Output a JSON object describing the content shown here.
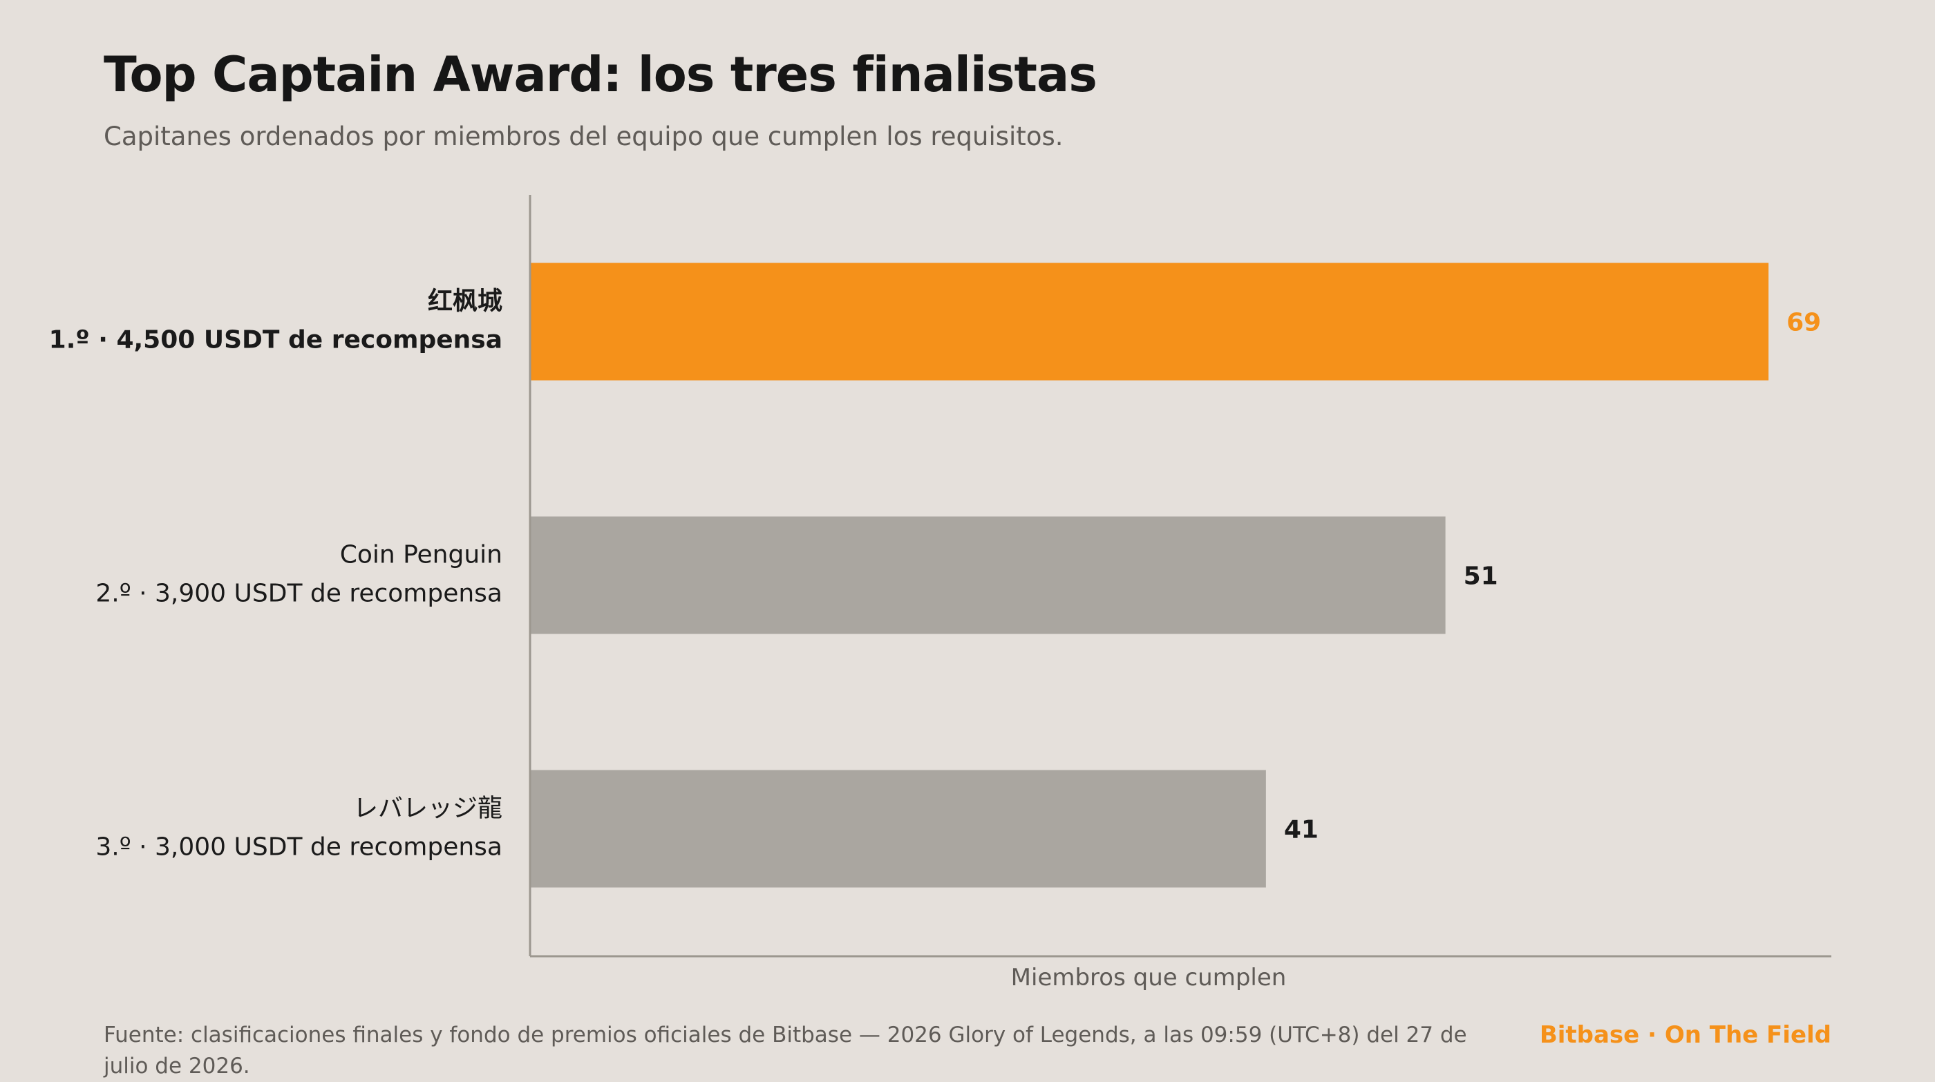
{
  "header": {
    "title": "Top Captain Award: los tres finalistas",
    "subtitle": "Capitanes ordenados por miembros del equipo que cumplen los requisitos."
  },
  "colors": {
    "background": "#E5E0DB",
    "highlight": "#F5911A",
    "bar_default": "#AAA6A0",
    "axis": "#9C978F",
    "text_dark": "#1A1A1A",
    "text_muted": "#5F5B57"
  },
  "chart_data": {
    "type": "bar",
    "orientation": "horizontal",
    "categories": [
      {
        "name": "红枫城",
        "detail": "1.º · 4,500 USDT de recompensa",
        "highlight": true
      },
      {
        "name": "Coin Penguin",
        "detail": "2.º · 3,900 USDT de recompensa",
        "highlight": false
      },
      {
        "name": "レバレッジ龍",
        "detail": "3.º · 3,000 USDT de recompensa",
        "highlight": false
      }
    ],
    "values": [
      69,
      51,
      41
    ],
    "value_labels": [
      "69",
      "51",
      "41"
    ],
    "xlabel": "Miembros que cumplen",
    "xlim": [
      0,
      72.5
    ],
    "grid": false,
    "legend": "none"
  },
  "footer": {
    "source": "Fuente: clasificaciones finales y fondo de premios oficiales de Bitbase — 2026 Glory of Legends, a las 09:59 (UTC+8) del 27 de julio de 2026.",
    "brand": "Bitbase · On The Field"
  }
}
